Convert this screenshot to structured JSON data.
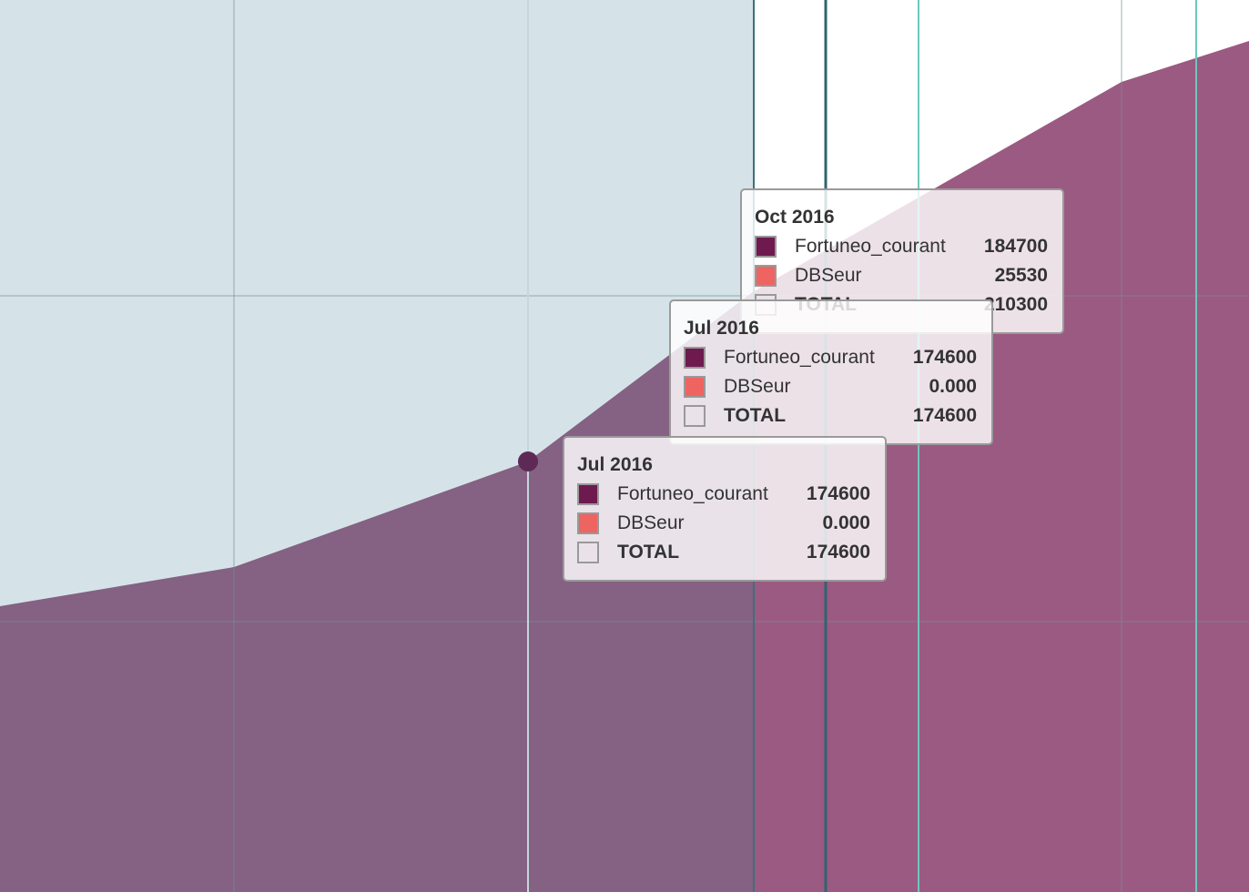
{
  "tooltips": [
    {
      "title": "Oct 2016",
      "rows": [
        {
          "name": "Fortuneo_courant",
          "value": "184700",
          "color": "#6e1a4f"
        },
        {
          "name": "DBSeur",
          "value": "25530",
          "color": "#ee6461"
        },
        {
          "name": "TOTAL",
          "value": "210300",
          "color": "none"
        }
      ]
    },
    {
      "title": "Jul 2016",
      "rows": [
        {
          "name": "Fortuneo_courant",
          "value": "174600",
          "color": "#6e1a4f"
        },
        {
          "name": "DBSeur",
          "value": "0.000",
          "color": "#ee6461"
        },
        {
          "name": "TOTAL",
          "value": "174600",
          "color": "none"
        }
      ]
    },
    {
      "title": "Jul 2016",
      "rows": [
        {
          "name": "Fortuneo_courant",
          "value": "174600",
          "color": "#6e1a4f"
        },
        {
          "name": "DBSeur",
          "value": "0.000",
          "color": "#ee6461"
        },
        {
          "name": "TOTAL",
          "value": "174600",
          "color": "none"
        }
      ]
    }
  ]
}
